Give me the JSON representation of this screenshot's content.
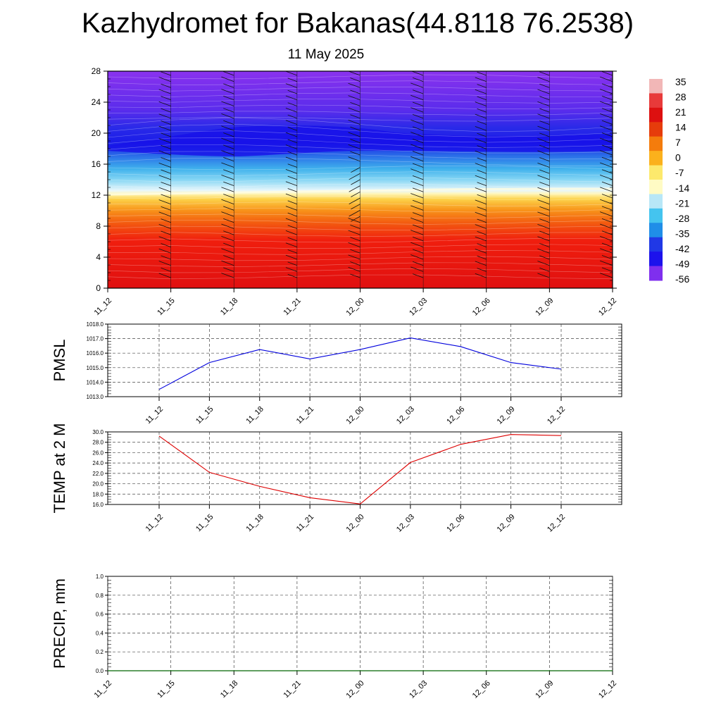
{
  "title": "Kazhydromet for Bakanas(44.8118 76.2538)",
  "subtitle": "11 May 2025",
  "chart_data": [
    {
      "type": "heatmap",
      "name": "vertical-profile",
      "x_ticks": [
        "11_12",
        "11_15",
        "11_18",
        "11_21",
        "12_00",
        "12_03",
        "12_06",
        "12_09",
        "12_12"
      ],
      "y_ticks": [
        0,
        4,
        8,
        12,
        16,
        20,
        24,
        28
      ],
      "ylim": [
        0,
        28
      ],
      "colorbar": {
        "labels": [
          "35",
          "28",
          "21",
          "14",
          "7",
          "0",
          "-7",
          "-14",
          "-21",
          "-28",
          "-35",
          "-42",
          "-49",
          "-56"
        ],
        "colors": [
          "#f2b7b7",
          "#e83a3a",
          "#dd1010",
          "#e63c0b",
          "#f47c0c",
          "#fbb11c",
          "#fde96c",
          "#fffbc4",
          "#b8e7f7",
          "#44c4ef",
          "#1f8ee8",
          "#2038e6",
          "#1c12ec",
          "#7f2fee"
        ]
      }
    },
    {
      "type": "line",
      "name": "PMSL",
      "ylabel": "PMSL",
      "x_ticks": [
        "11_12",
        "11_15",
        "11_18",
        "11_21",
        "12_00",
        "12_03",
        "12_06",
        "12_09",
        "12_12"
      ],
      "y_ticks": [
        "1013.0",
        "1014.0",
        "1015.0",
        "1016.0",
        "1017.0",
        "1018.0"
      ],
      "ylim": [
        1013.0,
        1018.0
      ],
      "series": [
        {
          "color": "#0000dd",
          "values": [
            1013.5,
            1015.35,
            1016.25,
            1015.6,
            1016.25,
            1017.05,
            1016.45,
            1015.35,
            1014.9
          ]
        }
      ]
    },
    {
      "type": "line",
      "name": "TEMP",
      "ylabel": "TEMP at 2 M",
      "x_ticks": [
        "11_12",
        "11_15",
        "11_18",
        "11_21",
        "12_00",
        "12_03",
        "12_06",
        "12_09",
        "12_12"
      ],
      "y_ticks": [
        "16.0",
        "18.0",
        "20.0",
        "22.0",
        "24.0",
        "26.0",
        "28.0",
        "30.0"
      ],
      "ylim": [
        16.0,
        30.0
      ],
      "series": [
        {
          "color": "#dd0000",
          "values": [
            29.2,
            22.2,
            19.5,
            17.3,
            16.1,
            24.1,
            27.6,
            29.5,
            29.3
          ]
        }
      ]
    },
    {
      "type": "line",
      "name": "PRECIP",
      "ylabel": "PRECIP, mm",
      "x_ticks": [
        "11_12",
        "11_15",
        "11_18",
        "11_21",
        "12_00",
        "12_03",
        "12_06",
        "12_09",
        "12_12"
      ],
      "y_ticks": [
        "0.0",
        "0.2",
        "0.4",
        "0.6",
        "0.8",
        "1.0"
      ],
      "ylim": [
        0.0,
        1.0
      ],
      "series": [
        {
          "color": "#006400",
          "values": [
            0,
            0,
            0,
            0,
            0,
            0,
            0,
            0,
            0
          ]
        }
      ]
    }
  ]
}
